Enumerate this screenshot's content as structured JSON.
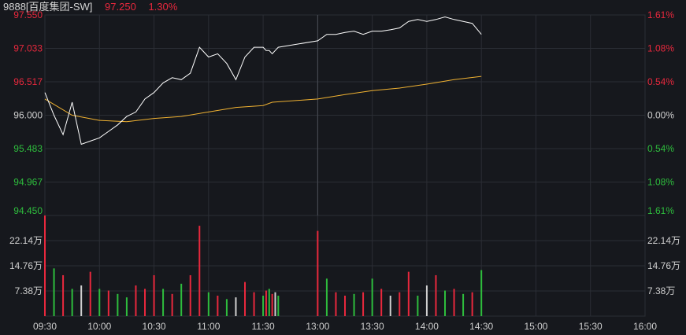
{
  "header": {
    "stock": "9888[百度集团-SW]",
    "price": "97.250",
    "change_pct": "1.30%"
  },
  "colors": {
    "up": "#e8283d",
    "down": "#2ebd3d",
    "neutral": "#d0d0d0",
    "price_line": "#ffffff",
    "avg_line": "#f0b232",
    "grid": "#2b2e35",
    "background": "#16181d"
  },
  "chart_data": [
    {
      "type": "line",
      "title": "",
      "xlabel": "",
      "ylabel": "",
      "x_ticks": [
        "09:30",
        "10:00",
        "10:30",
        "11:00",
        "11:30",
        "13:00",
        "13:30",
        "14:00",
        "14:30",
        "15:00",
        "15:30",
        "16:00"
      ],
      "ylim": [
        94.45,
        97.55
      ],
      "base_price": 96.0,
      "y_ticks": [
        97.55,
        97.033,
        96.517,
        96.0,
        95.483,
        94.967,
        94.45
      ],
      "y_tick_labels": [
        "97.550",
        "97.033",
        "96.517",
        "96.000",
        "95.483",
        "94.967",
        "94.450"
      ],
      "pct_tick_labels": [
        "1.61%",
        "1.08%",
        "0.54%",
        "0.00%",
        "0.54%",
        "1.08%",
        "1.61%"
      ],
      "series": [
        {
          "role": "price",
          "x": [
            "09:30",
            "09:35",
            "09:40",
            "09:45",
            "09:50",
            "09:55",
            "10:00",
            "10:05",
            "10:10",
            "10:15",
            "10:20",
            "10:25",
            "10:30",
            "10:35",
            "10:40",
            "10:45",
            "10:50",
            "10:55",
            "11:00",
            "11:05",
            "11:10",
            "11:15",
            "11:20",
            "11:25",
            "11:30",
            "11:35",
            "11:40",
            "11:45",
            "11:50",
            "11:55",
            "13:00",
            "13:05",
            "13:10",
            "13:15",
            "13:20",
            "13:25",
            "13:30",
            "13:35",
            "13:40",
            "13:45",
            "13:50",
            "13:55",
            "14:00",
            "14:05",
            "14:10",
            "14:15",
            "14:20",
            "14:25",
            "14:30"
          ],
          "values": [
            96.35,
            96.0,
            95.7,
            96.2,
            95.55,
            95.6,
            95.65,
            95.75,
            95.85,
            95.98,
            96.05,
            96.25,
            96.35,
            96.5,
            96.58,
            96.55,
            96.65,
            97.05,
            96.9,
            96.95,
            96.8,
            96.55,
            96.9,
            97.05,
            97.05,
            97.0,
            97.0,
            96.95,
            97.0,
            97.05,
            97.15,
            97.25,
            97.25,
            97.28,
            97.3,
            97.25,
            97.3,
            97.3,
            97.32,
            97.35,
            97.45,
            97.48,
            97.45,
            97.48,
            97.52,
            97.48,
            97.45,
            97.42,
            97.25
          ]
        },
        {
          "role": "average",
          "x": [
            "09:30",
            "09:45",
            "10:00",
            "10:15",
            "10:30",
            "10:45",
            "11:00",
            "11:15",
            "11:30",
            "11:45",
            "13:00",
            "13:15",
            "13:30",
            "13:45",
            "14:00",
            "14:15",
            "14:30"
          ],
          "values": [
            96.25,
            96.0,
            95.92,
            95.9,
            95.95,
            95.98,
            96.05,
            96.12,
            96.15,
            96.2,
            96.25,
            96.32,
            96.38,
            96.42,
            96.48,
            96.55,
            96.6
          ]
        }
      ]
    },
    {
      "type": "bar",
      "title": "",
      "xlabel": "",
      "ylabel": "",
      "ylim": [
        0,
        29.52
      ],
      "y_tick_labels": [
        "22.14万",
        "14.76万",
        "7.38万"
      ],
      "y_ticks": [
        22.14,
        14.76,
        7.38
      ],
      "x": [
        "09:30",
        "09:35",
        "09:40",
        "09:45",
        "09:50",
        "09:55",
        "10:00",
        "10:05",
        "10:10",
        "10:15",
        "10:20",
        "10:25",
        "10:30",
        "10:35",
        "10:40",
        "10:45",
        "10:50",
        "10:55",
        "11:00",
        "11:05",
        "11:10",
        "11:15",
        "11:20",
        "11:25",
        "11:30",
        "11:35",
        "11:40",
        "11:45",
        "11:50",
        "11:55",
        "13:00",
        "13:05",
        "13:10",
        "13:15",
        "13:20",
        "13:25",
        "13:30",
        "13:35",
        "13:40",
        "13:45",
        "13:50",
        "13:55",
        "14:00",
        "14:05",
        "14:10",
        "14:15",
        "14:20",
        "14:25",
        "14:30"
      ],
      "values": [
        29.5,
        14.0,
        12.0,
        8.0,
        9.0,
        13.0,
        8.0,
        7.5,
        6.5,
        5.5,
        9.0,
        8.0,
        12.0,
        8.0,
        6.5,
        9.5,
        12.0,
        26.5,
        7.0,
        6.0,
        5.0,
        5.5,
        10.0,
        7.0,
        6.0,
        7.5,
        8.0,
        6.5,
        7.0,
        6.0,
        25.0,
        11.0,
        7.0,
        6.0,
        6.5,
        7.0,
        11.0,
        8.0,
        6.0,
        7.0,
        13.0,
        6.0,
        9.0,
        12.0,
        7.5,
        8.0,
        6.5,
        7.0,
        13.5
      ],
      "directions": [
        "up",
        "down",
        "up",
        "down",
        "neutral",
        "up",
        "down",
        "up",
        "down",
        "down",
        "up",
        "up",
        "up",
        "down",
        "up",
        "down",
        "up",
        "up",
        "down",
        "up",
        "down",
        "neutral",
        "up",
        "up",
        "down",
        "up",
        "down",
        "up",
        "neutral",
        "down",
        "up",
        "down",
        "up",
        "up",
        "down",
        "up",
        "down",
        "up",
        "neutral",
        "up",
        "up",
        "down",
        "neutral",
        "up",
        "down",
        "up",
        "down",
        "up",
        "down"
      ]
    }
  ]
}
